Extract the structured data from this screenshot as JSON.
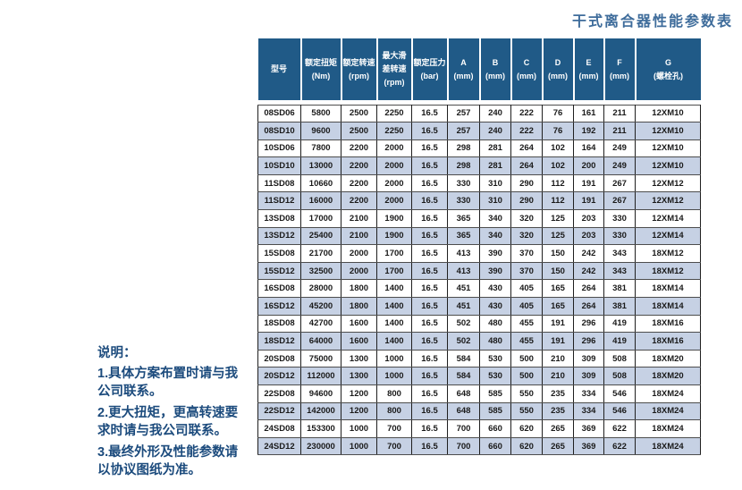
{
  "title": "干式离合器性能参数表",
  "colors": {
    "header_bg": "#205a87",
    "row_alt_bg": "#c6d1e4",
    "title_color": "#3e6c9b",
    "notes_color": "#1c4b7d",
    "v_border": "#1f1f1f",
    "h_border": "#4d4d4d"
  },
  "table": {
    "columns": [
      {
        "id": "model",
        "lines": [
          "型号"
        ]
      },
      {
        "id": "rated-torque",
        "lines": [
          "额定扭矩",
          "(Nm)"
        ]
      },
      {
        "id": "rated-speed",
        "lines": [
          "额定转速",
          "(rpm)"
        ]
      },
      {
        "id": "max-slip-speed",
        "lines": [
          "最大滑",
          "差转速",
          "(rpm)"
        ]
      },
      {
        "id": "rated-pressure",
        "lines": [
          "额定压力",
          "(bar)"
        ]
      },
      {
        "id": "dim-a",
        "lines": [
          "A",
          "(mm)"
        ]
      },
      {
        "id": "dim-b",
        "lines": [
          "B",
          "(mm)"
        ]
      },
      {
        "id": "dim-c",
        "lines": [
          "C",
          "(mm)"
        ]
      },
      {
        "id": "dim-d",
        "lines": [
          "D",
          "(mm)"
        ]
      },
      {
        "id": "dim-e",
        "lines": [
          "E",
          "(mm)"
        ]
      },
      {
        "id": "dim-f",
        "lines": [
          "F",
          "(mm)"
        ]
      },
      {
        "id": "dim-g",
        "lines": [
          "G",
          "(螺栓孔)"
        ]
      }
    ],
    "rows": [
      [
        "08SD06",
        "5800",
        "2500",
        "2250",
        "16.5",
        "257",
        "240",
        "222",
        "76",
        "161",
        "211",
        "12XM10"
      ],
      [
        "08SD10",
        "9600",
        "2500",
        "2250",
        "16.5",
        "257",
        "240",
        "222",
        "76",
        "192",
        "211",
        "12XM10"
      ],
      [
        "10SD06",
        "7800",
        "2200",
        "2000",
        "16.5",
        "298",
        "281",
        "264",
        "102",
        "164",
        "249",
        "12XM10"
      ],
      [
        "10SD10",
        "13000",
        "2200",
        "2000",
        "16.5",
        "298",
        "281",
        "264",
        "102",
        "200",
        "249",
        "12XM10"
      ],
      [
        "11SD08",
        "10660",
        "2200",
        "2000",
        "16.5",
        "330",
        "310",
        "290",
        "112",
        "191",
        "267",
        "12XM12"
      ],
      [
        "11SD12",
        "16000",
        "2200",
        "2000",
        "16.5",
        "330",
        "310",
        "290",
        "112",
        "191",
        "267",
        "12XM12"
      ],
      [
        "13SD08",
        "17000",
        "2100",
        "1900",
        "16.5",
        "365",
        "340",
        "320",
        "125",
        "203",
        "330",
        "12XM14"
      ],
      [
        "13SD12",
        "25400",
        "2100",
        "1900",
        "16.5",
        "365",
        "340",
        "320",
        "125",
        "203",
        "330",
        "12XM14"
      ],
      [
        "15SD08",
        "21700",
        "2000",
        "1700",
        "16.5",
        "413",
        "390",
        "370",
        "150",
        "242",
        "343",
        "18XM12"
      ],
      [
        "15SD12",
        "32500",
        "2000",
        "1700",
        "16.5",
        "413",
        "390",
        "370",
        "150",
        "242",
        "343",
        "18XM12"
      ],
      [
        "16SD08",
        "28000",
        "1800",
        "1400",
        "16.5",
        "451",
        "430",
        "405",
        "165",
        "264",
        "381",
        "18XM14"
      ],
      [
        "16SD12",
        "45200",
        "1800",
        "1400",
        "16.5",
        "451",
        "430",
        "405",
        "165",
        "264",
        "381",
        "18XM14"
      ],
      [
        "18SD08",
        "42700",
        "1600",
        "1400",
        "16.5",
        "502",
        "480",
        "455",
        "191",
        "296",
        "419",
        "18XM16"
      ],
      [
        "18SD12",
        "64000",
        "1600",
        "1400",
        "16.5",
        "502",
        "480",
        "455",
        "191",
        "296",
        "419",
        "18XM16"
      ],
      [
        "20SD08",
        "75000",
        "1300",
        "1000",
        "16.5",
        "584",
        "530",
        "500",
        "210",
        "309",
        "508",
        "18XM20"
      ],
      [
        "20SD12",
        "112000",
        "1300",
        "1000",
        "16.5",
        "584",
        "530",
        "500",
        "210",
        "309",
        "508",
        "18XM20"
      ],
      [
        "22SD08",
        "94600",
        "1200",
        "800",
        "16.5",
        "648",
        "585",
        "550",
        "235",
        "334",
        "546",
        "18XM24"
      ],
      [
        "22SD12",
        "142000",
        "1200",
        "800",
        "16.5",
        "648",
        "585",
        "550",
        "235",
        "334",
        "546",
        "18XM24"
      ],
      [
        "24SD08",
        "153300",
        "1000",
        "700",
        "16.5",
        "700",
        "660",
        "620",
        "265",
        "369",
        "622",
        "18XM24"
      ],
      [
        "24SD12",
        "230000",
        "1000",
        "700",
        "16.5",
        "700",
        "660",
        "620",
        "265",
        "369",
        "622",
        "18XM24"
      ]
    ]
  },
  "notes": {
    "heading": "说明：",
    "items": [
      {
        "lines": [
          "1.具体方案布置时请与我",
          "公司联系。"
        ]
      },
      {
        "lines": [
          "2.更大扭矩，更高转速要",
          "求时请与我公司联系。"
        ]
      },
      {
        "lines": [
          "3.最终外形及性能参数请",
          "以协议图纸为准。"
        ]
      }
    ]
  }
}
